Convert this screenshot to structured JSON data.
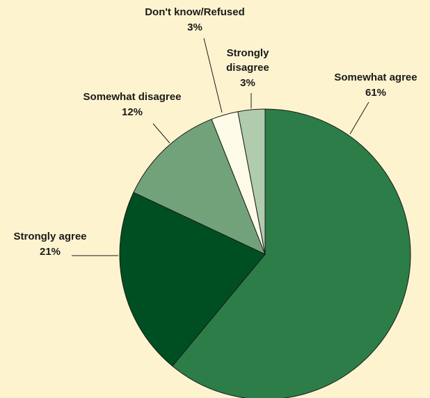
{
  "chart_data": {
    "type": "pie",
    "start_angle_deg": 0,
    "direction": "clockwise",
    "slices": [
      {
        "name": "Somewhat agree",
        "value": 61,
        "label": "Somewhat agree",
        "pct_label": "61%",
        "color": "#2c7d48"
      },
      {
        "name": "Strongly agree",
        "value": 21,
        "label": "Strongly agree",
        "pct_label": "21%",
        "color": "#004f22"
      },
      {
        "name": "Somewhat disagree",
        "value": 12,
        "label": "Somewhat disagree",
        "pct_label": "12%",
        "color": "#72a27a"
      },
      {
        "name": "Don't know/Refused",
        "value": 3,
        "label": "Don't know/Refused",
        "pct_label": "3%",
        "color": "#fdfbe8"
      },
      {
        "name": "Strongly disagree",
        "value": 3,
        "label_lines": [
          "Strongly",
          "disagree"
        ],
        "pct_label": "3%",
        "color": "#b1cbae"
      }
    ]
  }
}
